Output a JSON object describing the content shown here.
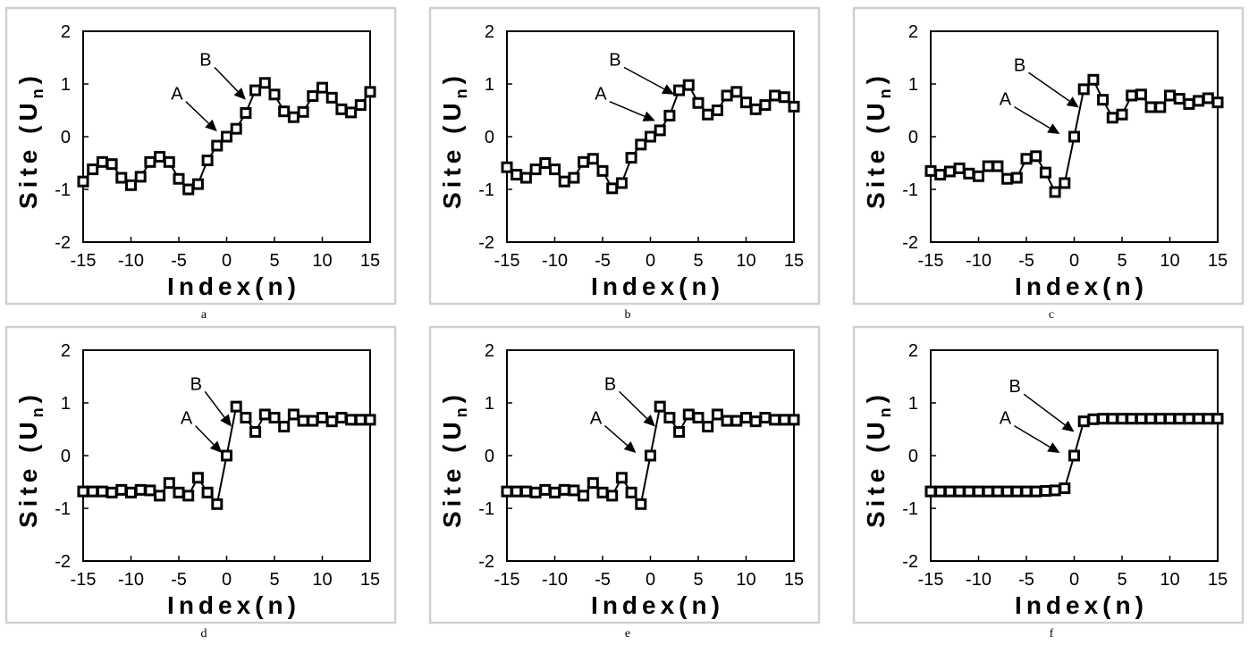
{
  "chart_data": [
    {
      "panel": "a",
      "type": "line",
      "xlabel": "Index(n)",
      "ylabel": "Site (U",
      "ylabel_sub": "n",
      "ylabel_close": ")",
      "xlim": [
        -15,
        15
      ],
      "ylim": [
        -2,
        2
      ],
      "xticks": [
        -15,
        -10,
        -5,
        0,
        5,
        10,
        15
      ],
      "yticks": [
        -2,
        -1,
        0,
        1,
        2
      ],
      "grid": false,
      "x": [
        -15,
        -14,
        -13,
        -12,
        -11,
        -10,
        -9,
        -8,
        -7,
        -6,
        -5,
        -4,
        -3,
        -2,
        -1,
        0,
        1,
        2,
        3,
        4,
        5,
        6,
        7,
        8,
        9,
        10,
        11,
        12,
        13,
        14,
        15
      ],
      "y": [
        -0.85,
        -0.62,
        -0.48,
        -0.52,
        -0.78,
        -0.92,
        -0.76,
        -0.48,
        -0.38,
        -0.48,
        -0.8,
        -1.0,
        -0.9,
        -0.45,
        -0.17,
        0.0,
        0.15,
        0.45,
        0.88,
        1.02,
        0.8,
        0.48,
        0.37,
        0.47,
        0.77,
        0.93,
        0.74,
        0.52,
        0.46,
        0.6,
        0.85
      ],
      "annotations": [
        {
          "label": "A",
          "text_at": [
            -5.2,
            0.7
          ],
          "point_at": [
            -1,
            0.1
          ]
        },
        {
          "label": "B",
          "text_at": [
            -2.2,
            1.35
          ],
          "point_at": [
            2,
            0.7
          ]
        }
      ],
      "caption": "a"
    },
    {
      "panel": "b",
      "type": "line",
      "xlabel": "Index(n)",
      "ylabel": "Site (U",
      "ylabel_sub": "n",
      "ylabel_close": ")",
      "xlim": [
        -15,
        15
      ],
      "ylim": [
        -2,
        2
      ],
      "xticks": [
        -15,
        -10,
        -5,
        0,
        5,
        10,
        15
      ],
      "yticks": [
        -2,
        -1,
        0,
        1,
        2
      ],
      "grid": false,
      "x": [
        -15,
        -14,
        -13,
        -12,
        -11,
        -10,
        -9,
        -8,
        -7,
        -6,
        -5,
        -4,
        -3,
        -2,
        -1,
        0,
        1,
        2,
        3,
        4,
        5,
        6,
        7,
        8,
        9,
        10,
        11,
        12,
        13,
        14,
        15
      ],
      "y": [
        -0.58,
        -0.72,
        -0.78,
        -0.62,
        -0.5,
        -0.62,
        -0.85,
        -0.78,
        -0.48,
        -0.42,
        -0.65,
        -0.98,
        -0.88,
        -0.4,
        -0.15,
        0.0,
        0.12,
        0.4,
        0.88,
        0.98,
        0.64,
        0.42,
        0.5,
        0.78,
        0.85,
        0.65,
        0.52,
        0.6,
        0.78,
        0.75,
        0.57
      ],
      "annotations": [
        {
          "label": "A",
          "text_at": [
            -5.2,
            0.7
          ],
          "point_at": [
            0.5,
            0.3
          ]
        },
        {
          "label": "B",
          "text_at": [
            -3.7,
            1.35
          ],
          "point_at": [
            2.5,
            0.8
          ]
        }
      ],
      "caption": "b"
    },
    {
      "panel": "c",
      "type": "line",
      "xlabel": "Index(n)",
      "ylabel": "Site (U",
      "ylabel_sub": "n",
      "ylabel_close": ")",
      "xlim": [
        -15,
        15
      ],
      "ylim": [
        -2,
        2
      ],
      "xticks": [
        -15,
        -10,
        -5,
        0,
        5,
        10,
        15
      ],
      "yticks": [
        -2,
        -1,
        0,
        1,
        2
      ],
      "grid": false,
      "x": [
        -15,
        -14,
        -13,
        -12,
        -11,
        -10,
        -9,
        -8,
        -7,
        -6,
        -5,
        -4,
        -3,
        -2,
        -1,
        0,
        1,
        2,
        3,
        4,
        5,
        6,
        7,
        8,
        9,
        10,
        11,
        12,
        13,
        14,
        15
      ],
      "y": [
        -0.65,
        -0.72,
        -0.66,
        -0.6,
        -0.7,
        -0.75,
        -0.56,
        -0.56,
        -0.8,
        -0.78,
        -0.42,
        -0.37,
        -0.68,
        -1.05,
        -0.88,
        0.0,
        0.9,
        1.08,
        0.7,
        0.36,
        0.42,
        0.78,
        0.8,
        0.56,
        0.56,
        0.78,
        0.72,
        0.62,
        0.68,
        0.73,
        0.65
      ],
      "annotations": [
        {
          "label": "A",
          "text_at": [
            -7.2,
            0.6
          ],
          "point_at": [
            -1.5,
            0.05
          ]
        },
        {
          "label": "B",
          "text_at": [
            -5.7,
            1.25
          ],
          "point_at": [
            0.5,
            0.55
          ]
        }
      ],
      "caption": "c"
    },
    {
      "panel": "d",
      "type": "line",
      "xlabel": "Index(n)",
      "ylabel": "Site (U",
      "ylabel_sub": "n",
      "ylabel_close": ")",
      "xlim": [
        -15,
        15
      ],
      "ylim": [
        -2,
        2
      ],
      "xticks": [
        -15,
        -10,
        -5,
        0,
        5,
        10,
        15
      ],
      "yticks": [
        -2,
        -1,
        0,
        1,
        2
      ],
      "grid": false,
      "x": [
        -15,
        -14,
        -13,
        -12,
        -11,
        -10,
        -9,
        -8,
        -7,
        -6,
        -5,
        -4,
        -3,
        -2,
        -1,
        0,
        1,
        2,
        3,
        4,
        5,
        6,
        7,
        8,
        9,
        10,
        11,
        12,
        13,
        14,
        15
      ],
      "y": [
        -0.68,
        -0.68,
        -0.68,
        -0.7,
        -0.65,
        -0.7,
        -0.65,
        -0.66,
        -0.76,
        -0.52,
        -0.7,
        -0.76,
        -0.42,
        -0.7,
        -0.92,
        0.0,
        0.93,
        0.72,
        0.45,
        0.78,
        0.72,
        0.55,
        0.78,
        0.66,
        0.66,
        0.72,
        0.65,
        0.72,
        0.68,
        0.68,
        0.68
      ],
      "annotations": [
        {
          "label": "A",
          "text_at": [
            -4.2,
            0.6
          ],
          "point_at": [
            -0.5,
            0.05
          ]
        },
        {
          "label": "B",
          "text_at": [
            -3.2,
            1.25
          ],
          "point_at": [
            0.5,
            0.55
          ]
        }
      ],
      "caption": "d"
    },
    {
      "panel": "e",
      "type": "line",
      "xlabel": "Index(n)",
      "ylabel": "Site (U",
      "ylabel_sub": "n",
      "ylabel_close": ")",
      "xlim": [
        -15,
        15
      ],
      "ylim": [
        -2,
        2
      ],
      "xticks": [
        -15,
        -10,
        -5,
        0,
        5,
        10,
        15
      ],
      "yticks": [
        -2,
        -1,
        0,
        1,
        2
      ],
      "grid": false,
      "x": [
        -15,
        -14,
        -13,
        -12,
        -11,
        -10,
        -9,
        -8,
        -7,
        -6,
        -5,
        -4,
        -3,
        -2,
        -1,
        0,
        1,
        2,
        3,
        4,
        5,
        6,
        7,
        8,
        9,
        10,
        11,
        12,
        13,
        14,
        15
      ],
      "y": [
        -0.68,
        -0.68,
        -0.68,
        -0.7,
        -0.65,
        -0.7,
        -0.65,
        -0.66,
        -0.76,
        -0.52,
        -0.7,
        -0.76,
        -0.42,
        -0.7,
        -0.92,
        0.0,
        0.93,
        0.72,
        0.45,
        0.78,
        0.72,
        0.55,
        0.78,
        0.66,
        0.66,
        0.72,
        0.65,
        0.72,
        0.68,
        0.68,
        0.68
      ],
      "annotations": [
        {
          "label": "A",
          "text_at": [
            -5.7,
            0.6
          ],
          "point_at": [
            -1.5,
            0.05
          ]
        },
        {
          "label": "B",
          "text_at": [
            -4.2,
            1.25
          ],
          "point_at": [
            0.5,
            0.55
          ]
        }
      ],
      "caption": "e"
    },
    {
      "panel": "f",
      "type": "line",
      "xlabel": "Index(n)",
      "ylabel": "Site (U",
      "ylabel_sub": "n",
      "ylabel_close": ")",
      "xlim": [
        -15,
        15
      ],
      "ylim": [
        -2,
        2
      ],
      "xticks": [
        -15,
        -10,
        -5,
        0,
        5,
        10,
        15
      ],
      "yticks": [
        -2,
        -1,
        0,
        1,
        2
      ],
      "grid": false,
      "x": [
        -15,
        -14,
        -13,
        -12,
        -11,
        -10,
        -9,
        -8,
        -7,
        -6,
        -5,
        -4,
        -3,
        -2,
        -1,
        0,
        1,
        2,
        3,
        4,
        5,
        6,
        7,
        8,
        9,
        10,
        11,
        12,
        13,
        14,
        15
      ],
      "y": [
        -0.68,
        -0.68,
        -0.68,
        -0.68,
        -0.68,
        -0.68,
        -0.68,
        -0.68,
        -0.68,
        -0.68,
        -0.68,
        -0.68,
        -0.67,
        -0.66,
        -0.62,
        0.0,
        0.65,
        0.69,
        0.7,
        0.7,
        0.7,
        0.7,
        0.7,
        0.7,
        0.7,
        0.7,
        0.7,
        0.7,
        0.7,
        0.7,
        0.7
      ],
      "annotations": [
        {
          "label": "A",
          "text_at": [
            -7.2,
            0.6
          ],
          "point_at": [
            -1.5,
            0.05
          ]
        },
        {
          "label": "B",
          "text_at": [
            -6.2,
            1.2
          ],
          "point_at": [
            0,
            0.45
          ]
        }
      ],
      "caption": "f"
    }
  ]
}
